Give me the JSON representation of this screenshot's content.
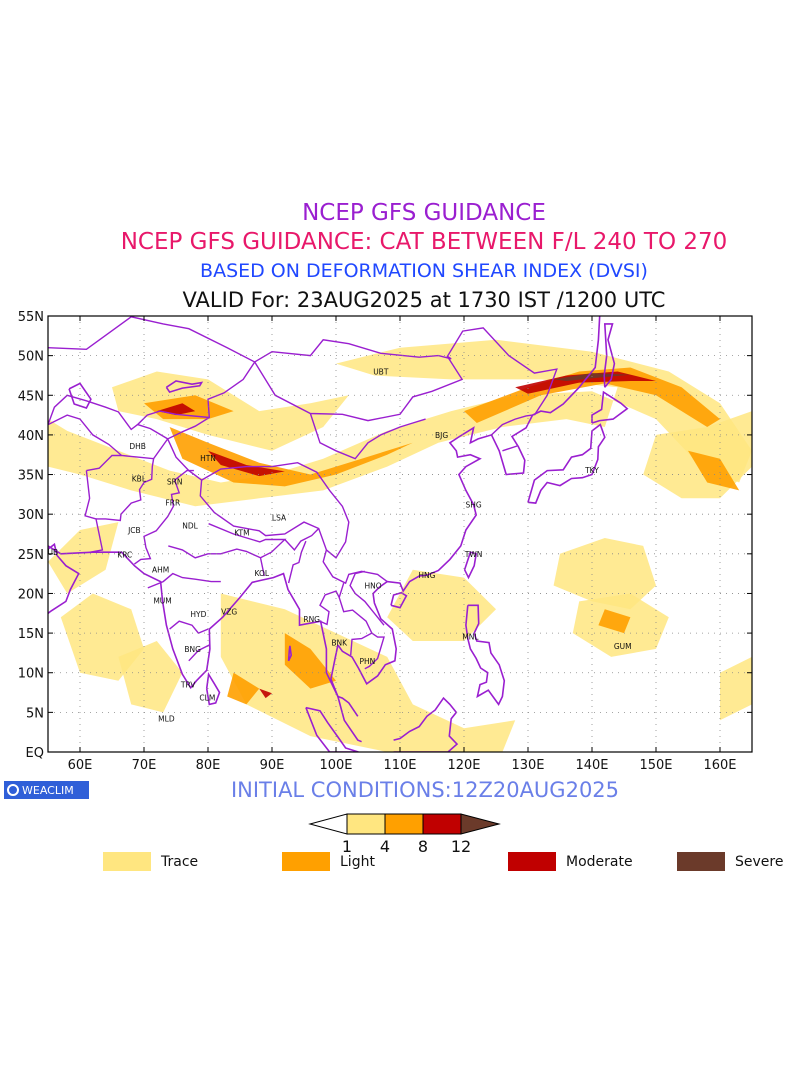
{
  "titles": {
    "line1": "NCEP GFS GUIDANCE",
    "line2": "NCEP GFS GUIDANCE: CAT BETWEEN F/L 240 TO 270",
    "line3": "BASED ON DEFORMATION SHEAR INDEX (DVSI)",
    "line4": "VALID For: 23AUG2025 at 1730 IST /1200 UTC"
  },
  "map": {
    "lon_labels": [
      "60E",
      "70E",
      "80E",
      "90E",
      "100E",
      "110E",
      "120E",
      "130E",
      "140E",
      "150E",
      "160E"
    ],
    "lat_labels": [
      "55N",
      "50N",
      "45N",
      "40N",
      "35N",
      "30N",
      "25N",
      "20N",
      "15N",
      "10N",
      "5N",
      "EQ"
    ],
    "cities": [
      {
        "code": "UBT",
        "lon": 107,
        "lat": 48
      },
      {
        "code": "BJG",
        "lon": 116.5,
        "lat": 40
      },
      {
        "code": "TKY",
        "lon": 140,
        "lat": 35.6
      },
      {
        "code": "SHG",
        "lon": 121.5,
        "lat": 31.2
      },
      {
        "code": "TWN",
        "lon": 121.5,
        "lat": 25
      },
      {
        "code": "HNG",
        "lon": 114.2,
        "lat": 22.3
      },
      {
        "code": "HNO",
        "lon": 105.8,
        "lat": 21
      },
      {
        "code": "RNG",
        "lon": 96.2,
        "lat": 16.8
      },
      {
        "code": "BNK",
        "lon": 100.5,
        "lat": 13.8
      },
      {
        "code": "PHN",
        "lon": 104.9,
        "lat": 11.5
      },
      {
        "code": "MNL",
        "lon": 121,
        "lat": 14.6
      },
      {
        "code": "GUM",
        "lon": 144.8,
        "lat": 13.4
      },
      {
        "code": "DHB",
        "lon": 69,
        "lat": 38.6
      },
      {
        "code": "HTN",
        "lon": 80,
        "lat": 37.1
      },
      {
        "code": "KBL",
        "lon": 69.2,
        "lat": 34.5
      },
      {
        "code": "SRN",
        "lon": 74.8,
        "lat": 34.1
      },
      {
        "code": "FRR",
        "lon": 74.5,
        "lat": 31.5
      },
      {
        "code": "JCB",
        "lon": 68.5,
        "lat": 28
      },
      {
        "code": "NDL",
        "lon": 77.2,
        "lat": 28.6
      },
      {
        "code": "KTM",
        "lon": 85.3,
        "lat": 27.7
      },
      {
        "code": "LSA",
        "lon": 91.1,
        "lat": 29.6
      },
      {
        "code": "DUB",
        "lon": 55.3,
        "lat": 25.2
      },
      {
        "code": "KRC",
        "lon": 67,
        "lat": 24.9
      },
      {
        "code": "AHM",
        "lon": 72.6,
        "lat": 23
      },
      {
        "code": "KOL",
        "lon": 88.4,
        "lat": 22.6
      },
      {
        "code": "MUM",
        "lon": 72.9,
        "lat": 19.1
      },
      {
        "code": "HYD",
        "lon": 78.5,
        "lat": 17.4
      },
      {
        "code": "VZG",
        "lon": 83.3,
        "lat": 17.7
      },
      {
        "code": "BNG",
        "lon": 77.6,
        "lat": 13
      },
      {
        "code": "TRV",
        "lon": 76.9,
        "lat": 8.5
      },
      {
        "code": "CLM",
        "lon": 79.9,
        "lat": 6.9
      },
      {
        "code": "MLD",
        "lon": 73.5,
        "lat": 4.2
      }
    ]
  },
  "initial_conditions": "INITIAL CONDITIONS:12Z20AUG2025",
  "colorbar": {
    "ticks": [
      "1",
      "4",
      "8",
      "12"
    ],
    "colors": [
      "#ffe680",
      "#ffa000",
      "#c00000",
      "#6b3a2a"
    ]
  },
  "legend": [
    {
      "label": "Trace",
      "color": "#ffe680"
    },
    {
      "label": "Light",
      "color": "#ffa000"
    },
    {
      "label": "Moderate",
      "color": "#c00000"
    },
    {
      "label": "Severe",
      "color": "#6b3a2a"
    }
  ],
  "branding": {
    "label": "WEACLIM",
    "color": "#2f5fd8"
  },
  "colors": {
    "boundary": "#9a1fd0",
    "title1": "#9a1fd0",
    "title2": "#e8186a",
    "title3": "#2048ff"
  }
}
